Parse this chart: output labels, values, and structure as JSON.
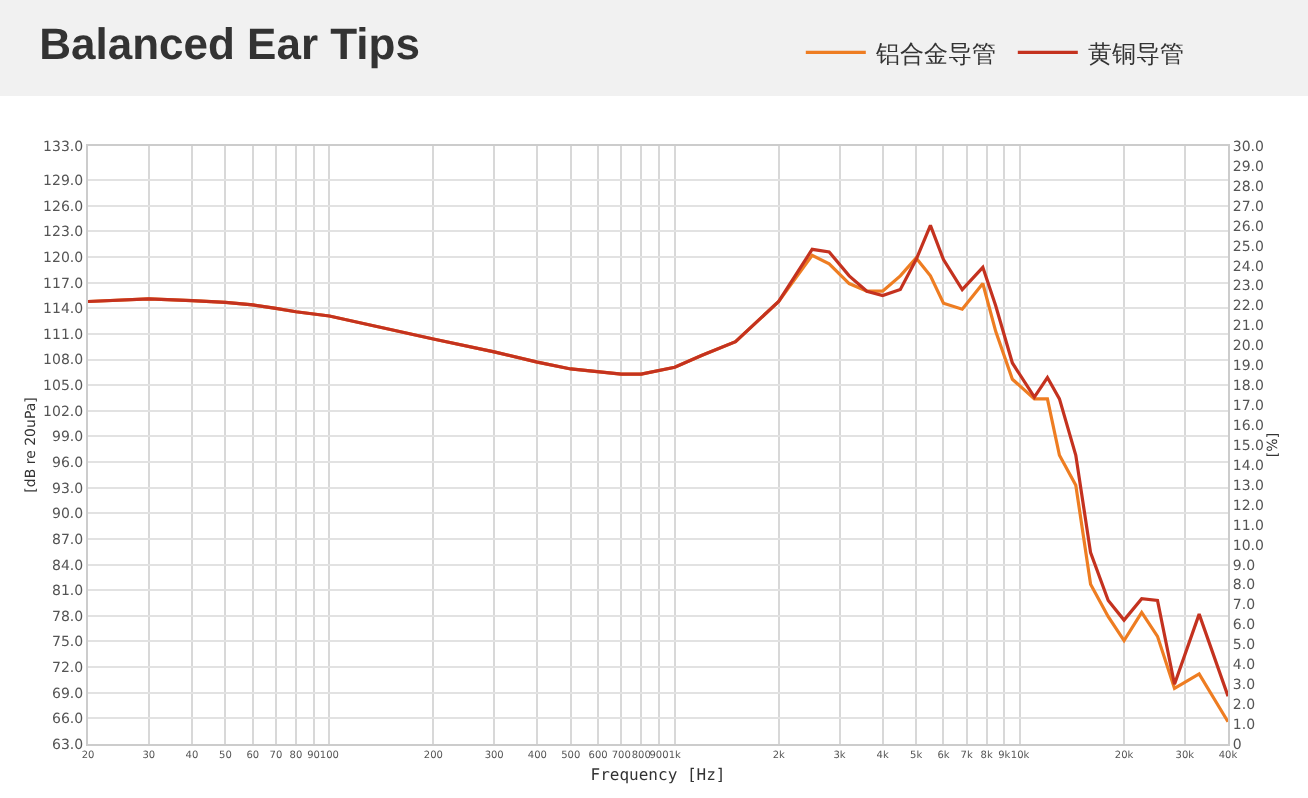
{
  "chart_data": {
    "type": "line",
    "title": "Balanced Ear Tips",
    "xlabel": "Frequency [Hz]",
    "ylabel": "[dB re 20uPa]",
    "y2label": "[%]",
    "log": "x",
    "grid": true,
    "legend": "top right",
    "marker": "none",
    "line_style": "solid",
    "x": [
      20,
      30,
      40,
      50,
      60,
      70,
      80,
      100,
      200,
      300,
      400,
      500,
      700,
      800,
      1000,
      1200,
      1500,
      2000,
      2500,
      2800,
      3200,
      3600,
      4000,
      4500,
      5000,
      5500,
      6000,
      6800,
      7800,
      8500,
      9500,
      11000,
      12000,
      13000,
      14500,
      16000,
      18000,
      20000,
      22500,
      25000,
      28000,
      33000,
      40000
    ],
    "series": [
      {
        "name": "铝合金导管",
        "color": "#ee7d22",
        "values": [
          114.8,
          115.1,
          114.9,
          114.7,
          114.4,
          114.0,
          113.6,
          113.1,
          110.4,
          108.9,
          107.7,
          106.9,
          106.3,
          106.3,
          107.1,
          108.5,
          110.1,
          114.8,
          120.2,
          119.2,
          116.9,
          116.0,
          116.0,
          117.8,
          119.9,
          117.8,
          114.6,
          113.9,
          116.9,
          111.3,
          105.7,
          103.4,
          103.4,
          96.8,
          93.3,
          81.7,
          77.9,
          75.1,
          78.4,
          75.6,
          69.5,
          71.2,
          65.6
        ]
      },
      {
        "name": "黄铜导管",
        "color": "#c4321f",
        "values": [
          114.8,
          115.1,
          114.9,
          114.7,
          114.4,
          114.0,
          113.6,
          113.1,
          110.4,
          108.9,
          107.7,
          106.9,
          106.3,
          106.3,
          107.1,
          108.5,
          110.1,
          114.8,
          120.9,
          120.6,
          117.8,
          116.0,
          115.5,
          116.2,
          119.7,
          123.7,
          119.7,
          116.2,
          118.8,
          114.3,
          107.6,
          103.6,
          105.9,
          103.4,
          96.8,
          85.4,
          79.8,
          77.5,
          80.0,
          79.8,
          70.0,
          78.2,
          68.6
        ]
      }
    ],
    "xlim": [
      20,
      40000
    ],
    "xticks": [
      20,
      30,
      40,
      50,
      60,
      70,
      80,
      90,
      100,
      200,
      300,
      400,
      500,
      600,
      700,
      800,
      900,
      {
        "value": 1000,
        "label": "1k"
      },
      {
        "value": 2000,
        "label": "2k"
      },
      {
        "value": 3000,
        "label": "3k"
      },
      {
        "value": 4000,
        "label": "4k"
      },
      {
        "value": 5000,
        "label": "5k"
      },
      {
        "value": 6000,
        "label": "6k"
      },
      {
        "value": 7000,
        "label": "7k"
      },
      {
        "value": 8000,
        "label": "8k"
      },
      {
        "value": 9000,
        "label": "9k"
      },
      {
        "value": 10000,
        "label": "10k"
      },
      {
        "value": 20000,
        "label": "20k"
      },
      {
        "value": 30000,
        "label": "30k"
      },
      {
        "value": 40000,
        "label": "40k"
      }
    ],
    "ylim": [
      63,
      133
    ],
    "yticks": [
      {
        "value": 63,
        "label": "63.0"
      },
      {
        "value": 66,
        "label": "66.0"
      },
      {
        "value": 69,
        "label": "69.0"
      },
      {
        "value": 72,
        "label": "72.0"
      },
      {
        "value": 75,
        "label": "75.0"
      },
      {
        "value": 78,
        "label": "78.0"
      },
      {
        "value": 81,
        "label": "81.0"
      },
      {
        "value": 84,
        "label": "84.0"
      },
      {
        "value": 87,
        "label": "87.0"
      },
      {
        "value": 90,
        "label": "90.0"
      },
      {
        "value": 93,
        "label": "93.0"
      },
      {
        "value": 96,
        "label": "96.0"
      },
      {
        "value": 99,
        "label": "99.0"
      },
      {
        "value": 102,
        "label": "102.0"
      },
      {
        "value": 105,
        "label": "105.0"
      },
      {
        "value": 108,
        "label": "108.0"
      },
      {
        "value": 111,
        "label": "111.0"
      },
      {
        "value": 114,
        "label": "114.0"
      },
      {
        "value": 117,
        "label": "117.0"
      },
      {
        "value": 120,
        "label": "120.0"
      },
      {
        "value": 123,
        "label": "123.0"
      },
      {
        "value": 126,
        "label": "126.0"
      },
      {
        "value": 129,
        "label": "129.0"
      },
      {
        "value": 133,
        "label": "133.0"
      }
    ],
    "y2lim": [
      0,
      30
    ],
    "y2ticks": [
      0,
      {
        "value": 1,
        "label": "1.0"
      },
      {
        "value": 2,
        "label": "2.0"
      },
      {
        "value": 3,
        "label": "3.0"
      },
      {
        "value": 4,
        "label": "4.0"
      },
      {
        "value": 5,
        "label": "5.0"
      },
      {
        "value": 6,
        "label": "6.0"
      },
      {
        "value": 7,
        "label": "7.0"
      },
      {
        "value": 8,
        "label": "8.0"
      },
      {
        "value": 9,
        "label": "9.0"
      },
      {
        "value": 10,
        "label": "10.0"
      },
      {
        "value": 11,
        "label": "11.0"
      },
      {
        "value": 12,
        "label": "12.0"
      },
      {
        "value": 13,
        "label": "13.0"
      },
      {
        "value": 14,
        "label": "14.0"
      },
      {
        "value": 15,
        "label": "15.0"
      },
      {
        "value": 16,
        "label": "16.0"
      },
      {
        "value": 17,
        "label": "17.0"
      },
      {
        "value": 18,
        "label": "18.0"
      },
      {
        "value": 19,
        "label": "19.0"
      },
      {
        "value": 20,
        "label": "20.0"
      },
      {
        "value": 21,
        "label": "21.0"
      },
      {
        "value": 22,
        "label": "22.0"
      },
      {
        "value": 23,
        "label": "23.0"
      },
      {
        "value": 24,
        "label": "24.0"
      },
      {
        "value": 25,
        "label": "25.0"
      },
      {
        "value": 26,
        "label": "26.0"
      },
      {
        "value": 27,
        "label": "27.0"
      },
      {
        "value": 28,
        "label": "28.0"
      },
      {
        "value": 29,
        "label": "29.0"
      },
      {
        "value": 30,
        "label": "30.0"
      }
    ]
  }
}
